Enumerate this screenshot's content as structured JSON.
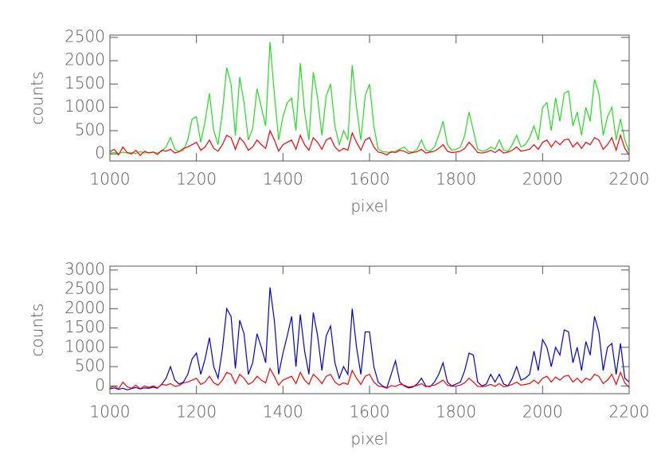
{
  "chart_data": [
    {
      "type": "line",
      "xlabel": "pixel",
      "ylabel": "counts",
      "xlim": [
        1000,
        2200
      ],
      "xticks": [
        1000,
        1200,
        1400,
        1600,
        1800,
        2000,
        2200
      ],
      "ylim": [
        -150,
        2550
      ],
      "yticks": [
        0,
        500,
        1000,
        1500,
        2000,
        2500
      ],
      "x": [
        1000,
        1010,
        1020,
        1030,
        1040,
        1050,
        1060,
        1070,
        1080,
        1090,
        1100,
        1110,
        1120,
        1130,
        1140,
        1150,
        1160,
        1170,
        1180,
        1190,
        1200,
        1210,
        1220,
        1230,
        1240,
        1250,
        1260,
        1270,
        1280,
        1290,
        1300,
        1310,
        1320,
        1330,
        1340,
        1350,
        1360,
        1370,
        1380,
        1390,
        1400,
        1410,
        1420,
        1430,
        1440,
        1450,
        1460,
        1470,
        1480,
        1490,
        1500,
        1510,
        1520,
        1530,
        1540,
        1550,
        1560,
        1570,
        1580,
        1590,
        1600,
        1610,
        1620,
        1630,
        1640,
        1650,
        1660,
        1670,
        1680,
        1690,
        1700,
        1710,
        1720,
        1730,
        1740,
        1750,
        1760,
        1770,
        1780,
        1790,
        1800,
        1810,
        1820,
        1830,
        1840,
        1850,
        1860,
        1870,
        1880,
        1890,
        1900,
        1910,
        1920,
        1930,
        1940,
        1950,
        1960,
        1970,
        1980,
        1990,
        2000,
        2010,
        2020,
        2030,
        2040,
        2050,
        2060,
        2070,
        2080,
        2090,
        2100,
        2110,
        2120,
        2130,
        2140,
        2150,
        2160,
        2170,
        2180,
        2190,
        2200
      ],
      "series": [
        {
          "color": "#22dd22",
          "values": [
            20,
            30,
            10,
            40,
            20,
            30,
            10,
            50,
            20,
            30,
            40,
            20,
            60,
            150,
            350,
            100,
            50,
            80,
            300,
            750,
            800,
            250,
            700,
            1300,
            500,
            200,
            900,
            1850,
            1500,
            400,
            1650,
            1100,
            300,
            550,
            1400,
            1000,
            600,
            2400,
            1300,
            300,
            800,
            1100,
            1200,
            500,
            1950,
            900,
            300,
            1750,
            1200,
            400,
            1250,
            1500,
            600,
            200,
            500,
            300,
            1900,
            1000,
            300,
            1250,
            1500,
            600,
            100,
            50,
            40,
            30,
            60,
            100,
            150,
            50,
            40,
            100,
            300,
            80,
            60,
            150,
            400,
            700,
            200,
            80,
            100,
            150,
            400,
            900,
            500,
            100,
            60,
            80,
            150,
            100,
            300,
            80,
            60,
            200,
            400,
            150,
            200,
            350,
            600,
            300,
            1000,
            1100,
            500,
            1200,
            700,
            1300,
            1350,
            600,
            900,
            400,
            1000,
            700,
            1600,
            1300,
            400,
            800,
            1000,
            300,
            750,
            300,
            50
          ]
        },
        {
          "color": "#ff0000",
          "values": [
            50,
            100,
            -20,
            150,
            30,
            0,
            80,
            -30,
            60,
            20,
            40,
            -10,
            80,
            60,
            100,
            20,
            50,
            120,
            150,
            200,
            250,
            80,
            150,
            300,
            120,
            60,
            200,
            400,
            350,
            100,
            350,
            250,
            80,
            150,
            300,
            200,
            120,
            500,
            300,
            60,
            200,
            250,
            300,
            100,
            400,
            200,
            80,
            350,
            250,
            100,
            300,
            350,
            150,
            60,
            120,
            80,
            450,
            250,
            80,
            300,
            350,
            150,
            40,
            20,
            -20,
            50,
            30,
            80,
            60,
            10,
            30,
            50,
            100,
            20,
            40,
            60,
            120,
            200,
            60,
            30,
            40,
            60,
            120,
            250,
            150,
            30,
            20,
            40,
            80,
            30,
            100,
            20,
            40,
            80,
            150,
            60,
            80,
            100,
            200,
            100,
            250,
            300,
            150,
            280,
            200,
            300,
            320,
            150,
            250,
            120,
            250,
            200,
            350,
            300,
            100,
            200,
            350,
            80,
            400,
            120,
            -20
          ]
        }
      ]
    },
    {
      "type": "line",
      "xlabel": "pixel",
      "ylabel": "counts",
      "xlim": [
        1000,
        2200
      ],
      "xticks": [
        1000,
        1200,
        1400,
        1600,
        1800,
        2000,
        2200
      ],
      "ylim": [
        -200,
        3100
      ],
      "yticks": [
        0,
        500,
        1000,
        1500,
        2000,
        2500,
        3000
      ],
      "x": [
        1000,
        1010,
        1020,
        1030,
        1040,
        1050,
        1060,
        1070,
        1080,
        1090,
        1100,
        1110,
        1120,
        1130,
        1140,
        1150,
        1160,
        1170,
        1180,
        1190,
        1200,
        1210,
        1220,
        1230,
        1240,
        1250,
        1260,
        1270,
        1280,
        1290,
        1300,
        1310,
        1320,
        1330,
        1340,
        1350,
        1360,
        1370,
        1380,
        1390,
        1400,
        1410,
        1420,
        1430,
        1440,
        1450,
        1460,
        1470,
        1480,
        1490,
        1500,
        1510,
        1520,
        1530,
        1540,
        1550,
        1560,
        1570,
        1580,
        1590,
        1600,
        1610,
        1620,
        1630,
        1640,
        1650,
        1660,
        1670,
        1680,
        1690,
        1700,
        1710,
        1720,
        1730,
        1740,
        1750,
        1760,
        1770,
        1780,
        1790,
        1800,
        1810,
        1820,
        1830,
        1840,
        1850,
        1860,
        1870,
        1880,
        1890,
        1900,
        1910,
        1920,
        1930,
        1940,
        1950,
        1960,
        1970,
        1980,
        1990,
        2000,
        2010,
        2020,
        2030,
        2040,
        2050,
        2060,
        2070,
        2080,
        2090,
        2100,
        2110,
        2120,
        2130,
        2140,
        2150,
        2160,
        2170,
        2180,
        2190,
        2200
      ],
      "series": [
        {
          "color": "#0000cc",
          "values": [
            -80,
            -50,
            -90,
            -60,
            -100,
            -70,
            -40,
            -80,
            -50,
            -60,
            -30,
            -60,
            50,
            200,
            500,
            150,
            50,
            100,
            300,
            700,
            850,
            300,
            700,
            1250,
            500,
            200,
            950,
            2000,
            1800,
            450,
            1700,
            1350,
            300,
            600,
            1350,
            1000,
            600,
            2550,
            1700,
            300,
            850,
            1300,
            1800,
            500,
            1850,
            900,
            300,
            1900,
            1300,
            400,
            1300,
            1550,
            600,
            200,
            500,
            300,
            2000,
            1000,
            300,
            1400,
            1400,
            500,
            100,
            0,
            -50,
            300,
            650,
            100,
            0,
            -50,
            -30,
            50,
            200,
            0,
            -20,
            100,
            300,
            600,
            100,
            0,
            50,
            100,
            400,
            850,
            800,
            100,
            0,
            50,
            300,
            100,
            300,
            50,
            0,
            200,
            500,
            150,
            200,
            300,
            900,
            400,
            1200,
            1000,
            500,
            1000,
            800,
            1450,
            1400,
            600,
            1000,
            400,
            1150,
            800,
            1800,
            1400,
            400,
            1000,
            1100,
            300,
            1100,
            200,
            100
          ]
        },
        {
          "color": "#ff0000",
          "values": [
            -50,
            0,
            -80,
            100,
            -20,
            -60,
            20,
            -70,
            0,
            -40,
            0,
            -50,
            40,
            20,
            60,
            -10,
            10,
            80,
            100,
            150,
            200,
            40,
            100,
            250,
            80,
            20,
            150,
            350,
            300,
            60,
            300,
            200,
            40,
            100,
            250,
            150,
            80,
            450,
            250,
            20,
            150,
            200,
            250,
            60,
            350,
            150,
            40,
            300,
            200,
            60,
            250,
            300,
            100,
            20,
            80,
            40,
            400,
            200,
            40,
            250,
            300,
            100,
            0,
            -20,
            -60,
            10,
            -10,
            40,
            20,
            -30,
            -10,
            10,
            60,
            -20,
            0,
            20,
            80,
            150,
            20,
            -10,
            0,
            20,
            80,
            200,
            100,
            -10,
            -20,
            0,
            40,
            -10,
            60,
            -20,
            0,
            40,
            100,
            20,
            40,
            60,
            150,
            60,
            200,
            250,
            100,
            230,
            150,
            250,
            270,
            100,
            200,
            80,
            200,
            150,
            300,
            250,
            60,
            150,
            300,
            40,
            350,
            80,
            -40
          ]
        }
      ]
    }
  ]
}
